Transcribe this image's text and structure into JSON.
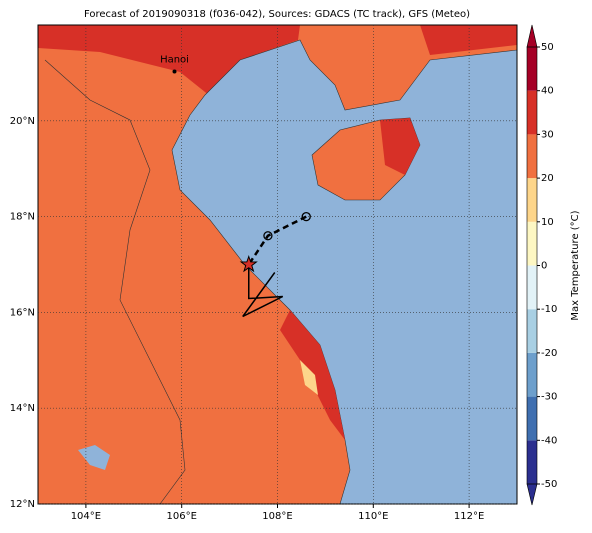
{
  "map": {
    "title": "Forecast of 2019090318 (f036-042), Sources: GDACS (TC track), GFS (Meteo)",
    "lonlim": [
      103,
      113
    ],
    "latlim": [
      12,
      22
    ],
    "xticks": [
      {
        "value": 104,
        "label": "104°E"
      },
      {
        "value": 106,
        "label": "106°E"
      },
      {
        "value": 108,
        "label": "108°E"
      },
      {
        "value": 110,
        "label": "110°E"
      },
      {
        "value": 112,
        "label": "112°E"
      }
    ],
    "yticks": [
      {
        "value": 12,
        "label": "12°N"
      },
      {
        "value": 14,
        "label": "14°N"
      },
      {
        "value": 16,
        "label": "16°N"
      },
      {
        "value": 18,
        "label": "18°N"
      },
      {
        "value": 20,
        "label": "20°N"
      }
    ],
    "grid": true,
    "city": {
      "name": "Hanoi",
      "lon": 105.85,
      "lat": 21.03
    },
    "track": {
      "lon": [
        108.6,
        107.8,
        107.4
      ],
      "lat": [
        18.0,
        17.6,
        17.0
      ]
    },
    "colorbar": {
      "label": "Max Temperature (°C)",
      "lim": [
        -50,
        50
      ],
      "ticks": [
        -50,
        -40,
        -30,
        -20,
        -10,
        0,
        10,
        20,
        30,
        40,
        50
      ],
      "colors": [
        "#2b2f8f",
        "#3f6fb0",
        "#6d9fcc",
        "#a8cfe3",
        "#e2f2f7",
        "#fdf7c3",
        "#fdd58a",
        "#f07040",
        "#d73027",
        "#a50026"
      ]
    }
  }
}
